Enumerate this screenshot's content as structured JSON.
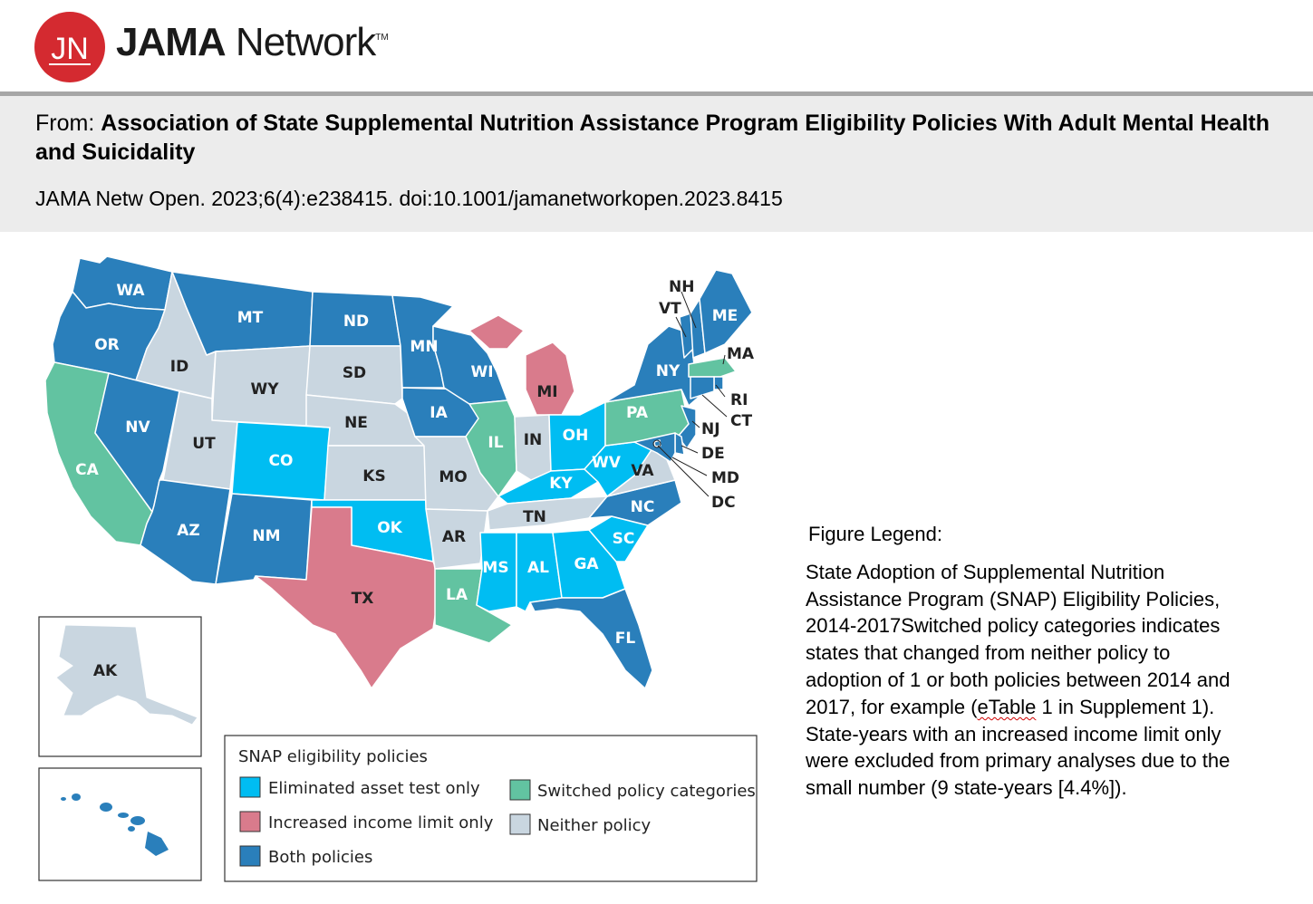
{
  "header": {
    "logo_monogram": "JN",
    "brand_bold": "JAMA",
    "brand_light": " Network",
    "brand_tm": "TM",
    "accent_color": "#d42a30"
  },
  "citation": {
    "from_prefix": "From: ",
    "title": "Association of State Supplemental Nutrition Assistance Program Eligibility Policies With Adult Mental Health and Suicidality",
    "reference": "JAMA Netw Open. 2023;6(4):e238415. doi:10.1001/jamanetworkopen.2023.8415"
  },
  "colors": {
    "asset": "#00bdf2",
    "income": "#d97b8c",
    "both": "#2a7fbb",
    "switched": "#62c3a1",
    "neither": "#c9d6e0"
  },
  "map": {
    "states": [
      {
        "code": "WA",
        "category": "both"
      },
      {
        "code": "OR",
        "category": "both"
      },
      {
        "code": "CA",
        "category": "switched"
      },
      {
        "code": "ID",
        "category": "neither"
      },
      {
        "code": "NV",
        "category": "both"
      },
      {
        "code": "MT",
        "category": "both"
      },
      {
        "code": "WY",
        "category": "neither"
      },
      {
        "code": "UT",
        "category": "neither"
      },
      {
        "code": "AZ",
        "category": "both"
      },
      {
        "code": "CO",
        "category": "asset"
      },
      {
        "code": "NM",
        "category": "both"
      },
      {
        "code": "ND",
        "category": "both"
      },
      {
        "code": "SD",
        "category": "neither"
      },
      {
        "code": "NE",
        "category": "neither"
      },
      {
        "code": "KS",
        "category": "neither"
      },
      {
        "code": "OK",
        "category": "asset"
      },
      {
        "code": "TX",
        "category": "income"
      },
      {
        "code": "MN",
        "category": "both"
      },
      {
        "code": "IA",
        "category": "both"
      },
      {
        "code": "MO",
        "category": "neither"
      },
      {
        "code": "AR",
        "category": "neither"
      },
      {
        "code": "LA",
        "category": "switched"
      },
      {
        "code": "WI",
        "category": "both"
      },
      {
        "code": "IL",
        "category": "switched"
      },
      {
        "code": "MI",
        "category": "income"
      },
      {
        "code": "IN",
        "category": "neither"
      },
      {
        "code": "OH",
        "category": "asset"
      },
      {
        "code": "KY",
        "category": "asset"
      },
      {
        "code": "TN",
        "category": "neither"
      },
      {
        "code": "MS",
        "category": "asset"
      },
      {
        "code": "AL",
        "category": "asset"
      },
      {
        "code": "GA",
        "category": "asset"
      },
      {
        "code": "FL",
        "category": "both"
      },
      {
        "code": "SC",
        "category": "asset"
      },
      {
        "code": "NC",
        "category": "both"
      },
      {
        "code": "VA",
        "category": "neither"
      },
      {
        "code": "WV",
        "category": "asset"
      },
      {
        "code": "PA",
        "category": "switched"
      },
      {
        "code": "NY",
        "category": "both"
      },
      {
        "code": "NJ",
        "category": "both"
      },
      {
        "code": "DE",
        "category": "both"
      },
      {
        "code": "MD",
        "category": "both"
      },
      {
        "code": "DC",
        "category": "both"
      },
      {
        "code": "VT",
        "category": "both"
      },
      {
        "code": "NH",
        "category": "both"
      },
      {
        "code": "ME",
        "category": "both"
      },
      {
        "code": "MA",
        "category": "switched"
      },
      {
        "code": "RI",
        "category": "both"
      },
      {
        "code": "CT",
        "category": "both"
      },
      {
        "code": "AK",
        "category": "neither"
      },
      {
        "code": "HI",
        "category": "both"
      }
    ]
  },
  "legend": {
    "title": "SNAP eligibility policies",
    "items": [
      {
        "key": "asset",
        "label": "Eliminated asset test only"
      },
      {
        "key": "income",
        "label": "Increased income limit only"
      },
      {
        "key": "both",
        "label": "Both policies"
      },
      {
        "key": "switched",
        "label": "Switched policy categories"
      },
      {
        "key": "neither",
        "label": "Neither policy"
      }
    ]
  },
  "caption": {
    "heading": "Figure Legend:",
    "text_part1": "State Adoption of Supplemental Nutrition Assistance Program (SNAP) Eligibility Policies, 2014-2017Switched policy categories indicates states that changed from neither policy to adoption of 1 or both policies between 2014 and 2017, for example (",
    "text_link": "eTable",
    "text_part2": " 1 in Supplement 1). State-years with an increased income limit only were excluded from primary analyses due to the small number (9 state-years [4.4%])."
  }
}
